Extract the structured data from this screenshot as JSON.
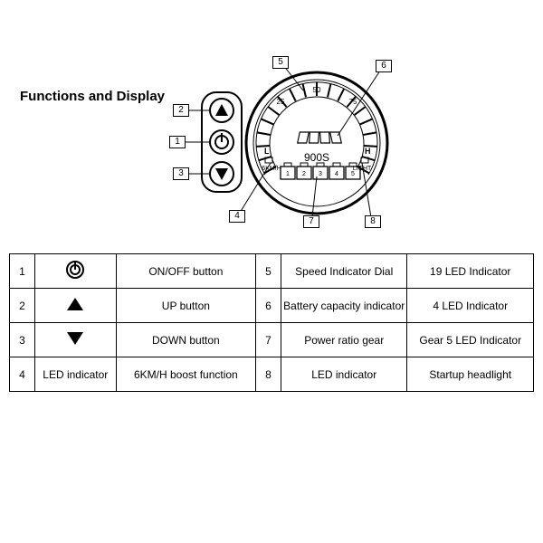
{
  "title": "Functions and Display",
  "model": "900S",
  "dial_ticks": {
    "count": 19,
    "start_deg": -120,
    "end_deg": 120
  },
  "dial_scale_labels": [
    "25",
    "50",
    "75"
  ],
  "dial_left_label": "6KM/H",
  "dial_right_label": "LIGHT",
  "battery_segments": 4,
  "gear_boxes": [
    "1",
    "2",
    "3",
    "4",
    "5"
  ],
  "side_letters": {
    "left": "L",
    "right": "H"
  },
  "callouts": {
    "c1": "1",
    "c2": "2",
    "c3": "3",
    "c4": "4",
    "c5": "5",
    "c6": "6",
    "c7": "7",
    "c8": "8"
  },
  "table": {
    "rows": [
      {
        "n1": "1",
        "icon": "power",
        "d1": "ON/OFF button",
        "n2": "5",
        "d2": "Speed Indicator Dial",
        "d3": "19 LED Indicator"
      },
      {
        "n1": "2",
        "icon": "tri-up",
        "d1": "UP button",
        "n2": "6",
        "d2": "Battery capacity indicator",
        "d3": "4 LED Indicator"
      },
      {
        "n1": "3",
        "icon": "tri-down",
        "d1": "DOWN button",
        "n2": "7",
        "d2": "Power ratio gear",
        "d3": "Gear 5 LED Indicator"
      },
      {
        "n1": "4",
        "icon": "text",
        "iconText": "LED indicator",
        "d1": "6KM/H boost function",
        "n2": "8",
        "d2": "LED indicator",
        "d3": "Startup headlight"
      }
    ]
  },
  "colors": {
    "stroke": "#000000",
    "bg": "#ffffff"
  }
}
